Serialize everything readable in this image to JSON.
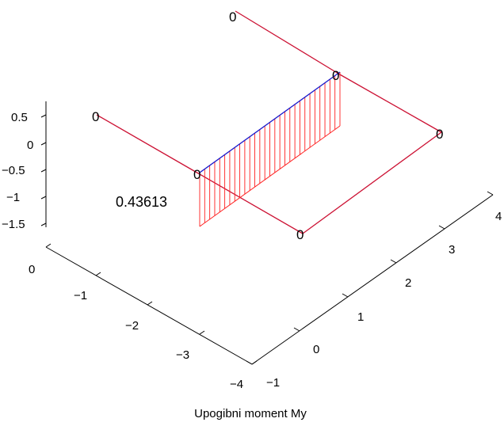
{
  "chart_data": {
    "type": "3d-line",
    "title": "",
    "xlabel": "Upogibni moment My",
    "z_ticks": [
      "0.5",
      "0",
      "−0.5",
      "−1",
      "−1.5"
    ],
    "y_ticks": [
      "0",
      "−1",
      "−2",
      "−3",
      "−4"
    ],
    "x_ticks": [
      "−1",
      "0",
      "1",
      "2",
      "3",
      "4"
    ],
    "node_labels": [
      "0",
      "0",
      "0",
      "0",
      "0",
      "0"
    ],
    "annotation": {
      "text": "0.43613"
    },
    "colors": {
      "frame": "#cc1133",
      "diagram_hatch": "#ff2020",
      "diagram_top": "#1a1acc",
      "axis": "#000000"
    }
  }
}
